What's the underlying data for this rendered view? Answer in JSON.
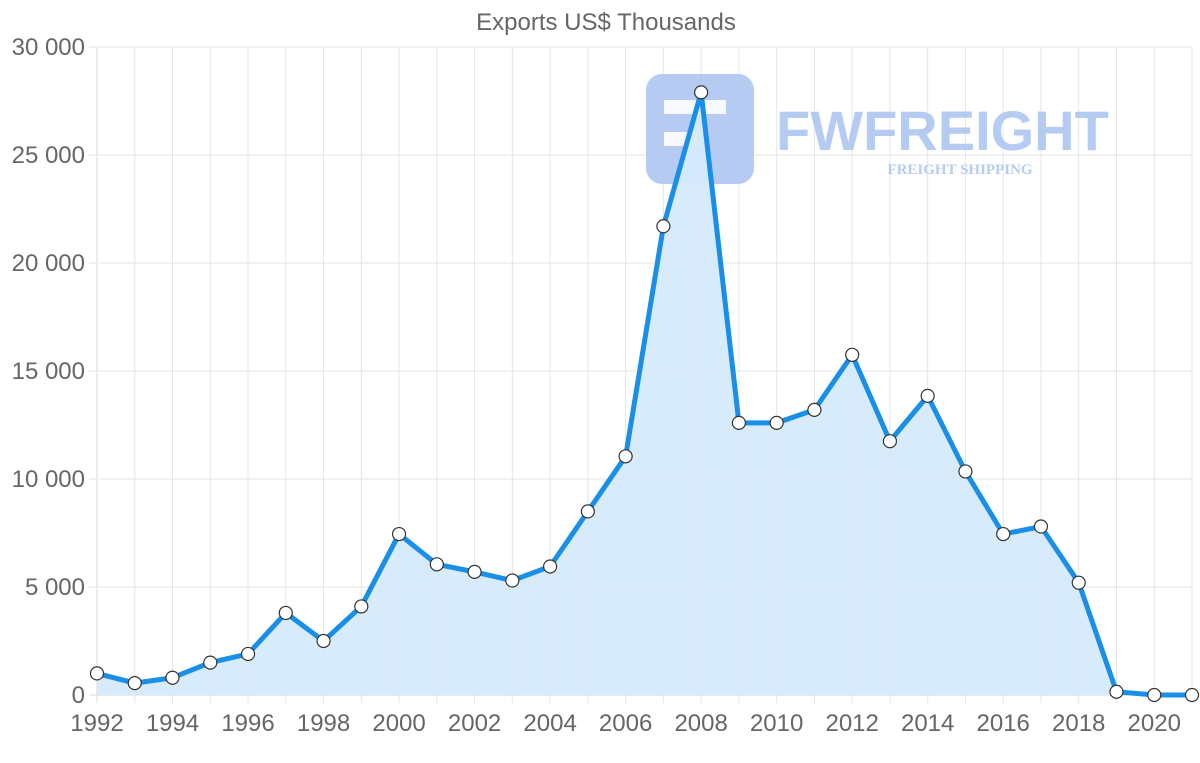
{
  "chart_data": {
    "type": "area",
    "title": "Exports US$ Thousands",
    "xlabel": "",
    "ylabel": "",
    "x": [
      1992,
      1993,
      1994,
      1995,
      1996,
      1997,
      1998,
      1999,
      2000,
      2001,
      2002,
      2003,
      2004,
      2005,
      2006,
      2007,
      2008,
      2009,
      2010,
      2011,
      2012,
      2013,
      2014,
      2015,
      2016,
      2017,
      2018,
      2019,
      2020,
      2021
    ],
    "x_tick_labels": [
      "1992",
      "1994",
      "1996",
      "1998",
      "2000",
      "2002",
      "2004",
      "2006",
      "2008",
      "2010",
      "2012",
      "2014",
      "2016",
      "2018",
      "2020"
    ],
    "y_tick_labels": [
      "0",
      "5 000",
      "10 000",
      "15 000",
      "20 000",
      "25 000",
      "30 000"
    ],
    "ylim": [
      0,
      30000
    ],
    "xlim": [
      1992,
      2021
    ],
    "grid": true,
    "legend": "none",
    "series": [
      {
        "name": "Exports US$ Thousands",
        "values": [
          1000,
          550,
          800,
          1500,
          1900,
          3800,
          2500,
          4100,
          7450,
          6050,
          5700,
          5300,
          5950,
          8500,
          11050,
          21700,
          27900,
          12600,
          12600,
          13200,
          15750,
          11750,
          13850,
          10350,
          7450,
          7800,
          5200,
          150,
          0,
          0
        ]
      }
    ],
    "colors": {
      "line": "#1a8fe8",
      "fill": "#d6eafb",
      "point_fill": "#ffffff",
      "point_stroke": "#333333"
    }
  },
  "watermark": {
    "name": "FWFREIGHT",
    "tagline": "FREIGHT SHIPPING"
  }
}
